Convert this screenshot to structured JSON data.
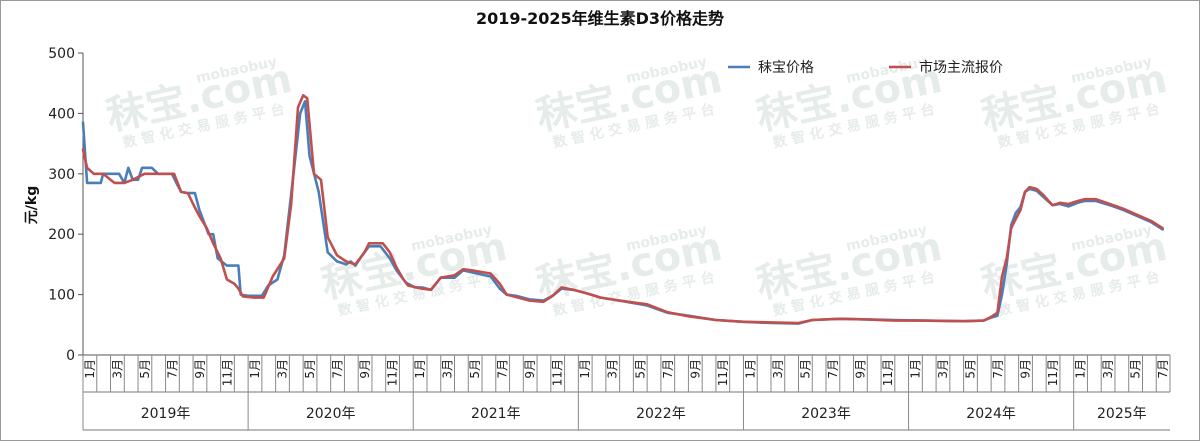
{
  "chart_data": {
    "type": "line",
    "title": "2019-2025年维生素D3价格走势",
    "ylabel": "元/kg",
    "xlabel": "",
    "ylim": [
      0,
      500
    ],
    "yticks": [
      0,
      100,
      200,
      300,
      400,
      500
    ],
    "legend_position": "top-right",
    "month_labels": [
      "1月",
      "3月",
      "5月",
      "7月",
      "9月",
      "11月"
    ],
    "years": [
      "2019年",
      "2020年",
      "2021年",
      "2022年",
      "2023年",
      "2024年",
      "2025年"
    ],
    "x_start": "2019-01",
    "x_end": "2025-07",
    "series": [
      {
        "name": "秣宝价格",
        "color": "#4a7ebb",
        "points": [
          [
            "2019-01-01",
            385
          ],
          [
            "2019-01-10",
            285
          ],
          [
            "2019-02-10",
            285
          ],
          [
            "2019-02-15",
            300
          ],
          [
            "2019-03-20",
            300
          ],
          [
            "2019-04-01",
            285
          ],
          [
            "2019-04-10",
            310
          ],
          [
            "2019-04-20",
            290
          ],
          [
            "2019-05-01",
            290
          ],
          [
            "2019-05-10",
            310
          ],
          [
            "2019-06-01",
            310
          ],
          [
            "2019-06-15",
            300
          ],
          [
            "2019-07-15",
            300
          ],
          [
            "2019-07-25",
            285
          ],
          [
            "2019-08-05",
            270
          ],
          [
            "2019-08-20",
            268
          ],
          [
            "2019-09-05",
            268
          ],
          [
            "2019-09-15",
            240
          ],
          [
            "2019-10-05",
            200
          ],
          [
            "2019-10-15",
            200
          ],
          [
            "2019-10-25",
            160
          ],
          [
            "2019-11-15",
            148
          ],
          [
            "2019-12-01",
            148
          ],
          [
            "2019-12-10",
            148
          ],
          [
            "2019-12-15",
            100
          ],
          [
            "2020-01-01",
            98
          ],
          [
            "2020-02-01",
            98
          ],
          [
            "2020-02-15",
            115
          ],
          [
            "2020-03-05",
            125
          ],
          [
            "2020-03-20",
            165
          ],
          [
            "2020-04-10",
            300
          ],
          [
            "2020-04-25",
            400
          ],
          [
            "2020-05-05",
            420
          ],
          [
            "2020-05-15",
            330
          ],
          [
            "2020-06-05",
            270
          ],
          [
            "2020-06-25",
            170
          ],
          [
            "2020-07-15",
            155
          ],
          [
            "2020-08-05",
            150
          ],
          [
            "2020-08-15",
            155
          ],
          [
            "2020-08-25",
            148
          ],
          [
            "2020-09-10",
            165
          ],
          [
            "2020-09-25",
            180
          ],
          [
            "2020-10-20",
            180
          ],
          [
            "2020-11-10",
            160
          ],
          [
            "2020-11-25",
            140
          ],
          [
            "2020-12-15",
            120
          ],
          [
            "2021-01-05",
            112
          ],
          [
            "2021-01-20",
            112
          ],
          [
            "2021-02-10",
            108
          ],
          [
            "2021-03-01",
            128
          ],
          [
            "2021-04-01",
            128
          ],
          [
            "2021-04-20",
            140
          ],
          [
            "2021-05-20",
            135
          ],
          [
            "2021-06-20",
            130
          ],
          [
            "2021-07-10",
            110
          ],
          [
            "2021-07-25",
            100
          ],
          [
            "2021-08-15",
            98
          ],
          [
            "2021-09-15",
            92
          ],
          [
            "2021-10-15",
            90
          ],
          [
            "2021-11-05",
            98
          ],
          [
            "2021-11-25",
            110
          ],
          [
            "2021-12-20",
            108
          ],
          [
            "2022-01-20",
            102
          ],
          [
            "2022-02-20",
            95
          ],
          [
            "2022-04-01",
            90
          ],
          [
            "2022-06-01",
            82
          ],
          [
            "2022-07-15",
            70
          ],
          [
            "2022-09-01",
            65
          ],
          [
            "2022-11-01",
            58
          ],
          [
            "2023-01-01",
            55
          ],
          [
            "2023-03-01",
            53
          ],
          [
            "2023-05-01",
            52
          ],
          [
            "2023-06-01",
            58
          ],
          [
            "2023-08-01",
            60
          ],
          [
            "2023-10-01",
            59
          ],
          [
            "2023-12-01",
            58
          ],
          [
            "2024-02-01",
            57
          ],
          [
            "2024-05-01",
            56
          ],
          [
            "2024-06-15",
            57
          ],
          [
            "2024-07-01",
            62
          ],
          [
            "2024-07-15",
            65
          ],
          [
            "2024-07-25",
            100
          ],
          [
            "2024-08-05",
            150
          ],
          [
            "2024-08-15",
            215
          ],
          [
            "2024-08-25",
            235
          ],
          [
            "2024-09-05",
            245
          ],
          [
            "2024-09-15",
            270
          ],
          [
            "2024-09-25",
            275
          ],
          [
            "2024-10-10",
            272
          ],
          [
            "2024-10-25",
            262
          ],
          [
            "2024-11-15",
            248
          ],
          [
            "2024-12-01",
            250
          ],
          [
            "2024-12-20",
            246
          ],
          [
            "2025-01-10",
            252
          ],
          [
            "2025-01-25",
            255
          ],
          [
            "2025-02-20",
            255
          ],
          [
            "2025-03-20",
            248
          ],
          [
            "2025-04-20",
            240
          ],
          [
            "2025-05-20",
            230
          ],
          [
            "2025-06-20",
            220
          ],
          [
            "2025-07-15",
            208
          ]
        ]
      },
      {
        "name": "市场主流报价",
        "color": "#c0504d",
        "points": [
          [
            "2019-01-01",
            340
          ],
          [
            "2019-01-10",
            310
          ],
          [
            "2019-01-25",
            300
          ],
          [
            "2019-02-15",
            300
          ],
          [
            "2019-03-01",
            290
          ],
          [
            "2019-03-10",
            285
          ],
          [
            "2019-04-01",
            285
          ],
          [
            "2019-04-20",
            290
          ],
          [
            "2019-05-15",
            300
          ],
          [
            "2019-06-01",
            300
          ],
          [
            "2019-06-15",
            300
          ],
          [
            "2019-07-20",
            300
          ],
          [
            "2019-08-05",
            270
          ],
          [
            "2019-08-20",
            268
          ],
          [
            "2019-09-01",
            250
          ],
          [
            "2019-09-15",
            230
          ],
          [
            "2019-10-01",
            210
          ],
          [
            "2019-10-15",
            185
          ],
          [
            "2019-11-01",
            160
          ],
          [
            "2019-11-15",
            125
          ],
          [
            "2019-12-01",
            118
          ],
          [
            "2019-12-10",
            110
          ],
          [
            "2019-12-20",
            97
          ],
          [
            "2020-01-15",
            95
          ],
          [
            "2020-02-05",
            95
          ],
          [
            "2020-02-25",
            130
          ],
          [
            "2020-03-20",
            160
          ],
          [
            "2020-04-05",
            250
          ],
          [
            "2020-04-20",
            410
          ],
          [
            "2020-05-01",
            430
          ],
          [
            "2020-05-10",
            425
          ],
          [
            "2020-05-25",
            300
          ],
          [
            "2020-06-10",
            290
          ],
          [
            "2020-06-25",
            195
          ],
          [
            "2020-07-15",
            165
          ],
          [
            "2020-08-05",
            155
          ],
          [
            "2020-08-25",
            150
          ],
          [
            "2020-09-15",
            170
          ],
          [
            "2020-09-25",
            185
          ],
          [
            "2020-10-25",
            185
          ],
          [
            "2020-11-10",
            170
          ],
          [
            "2020-11-25",
            145
          ],
          [
            "2020-12-10",
            125
          ],
          [
            "2020-12-20",
            115
          ],
          [
            "2021-01-20",
            110
          ],
          [
            "2021-02-10",
            108
          ],
          [
            "2021-03-01",
            128
          ],
          [
            "2021-04-01",
            132
          ],
          [
            "2021-04-20",
            142
          ],
          [
            "2021-05-10",
            140
          ],
          [
            "2021-06-20",
            135
          ],
          [
            "2021-07-10",
            118
          ],
          [
            "2021-07-25",
            100
          ],
          [
            "2021-08-15",
            96
          ],
          [
            "2021-09-15",
            90
          ],
          [
            "2021-10-15",
            88
          ],
          [
            "2021-11-05",
            98
          ],
          [
            "2021-11-25",
            112
          ],
          [
            "2021-12-20",
            108
          ],
          [
            "2022-01-20",
            102
          ],
          [
            "2022-02-20",
            95
          ],
          [
            "2022-04-01",
            90
          ],
          [
            "2022-06-01",
            84
          ],
          [
            "2022-07-15",
            71
          ],
          [
            "2022-09-01",
            64
          ],
          [
            "2022-11-01",
            58
          ],
          [
            "2023-01-01",
            55
          ],
          [
            "2023-03-01",
            54
          ],
          [
            "2023-05-01",
            53
          ],
          [
            "2023-06-01",
            58
          ],
          [
            "2023-08-01",
            60
          ],
          [
            "2023-10-01",
            59
          ],
          [
            "2023-12-01",
            57
          ],
          [
            "2024-02-01",
            57
          ],
          [
            "2024-05-01",
            56
          ],
          [
            "2024-06-15",
            57
          ],
          [
            "2024-07-01",
            63
          ],
          [
            "2024-07-15",
            70
          ],
          [
            "2024-07-25",
            130
          ],
          [
            "2024-08-05",
            160
          ],
          [
            "2024-08-15",
            210
          ],
          [
            "2024-08-25",
            225
          ],
          [
            "2024-09-05",
            240
          ],
          [
            "2024-09-15",
            270
          ],
          [
            "2024-09-25",
            278
          ],
          [
            "2024-10-10",
            275
          ],
          [
            "2024-10-25",
            265
          ],
          [
            "2024-11-15",
            248
          ],
          [
            "2024-12-01",
            252
          ],
          [
            "2024-12-20",
            250
          ],
          [
            "2025-01-10",
            255
          ],
          [
            "2025-01-25",
            258
          ],
          [
            "2025-02-20",
            258
          ],
          [
            "2025-03-20",
            250
          ],
          [
            "2025-04-20",
            242
          ],
          [
            "2025-05-20",
            232
          ],
          [
            "2025-06-20",
            222
          ],
          [
            "2025-07-15",
            210
          ]
        ]
      }
    ]
  },
  "watermark": {
    "brand": "秣宝.com",
    "domain": "mobaobuy",
    "slogan": "数 智 化 交 易 服 务 平 台",
    "color": "#e6ece9"
  }
}
